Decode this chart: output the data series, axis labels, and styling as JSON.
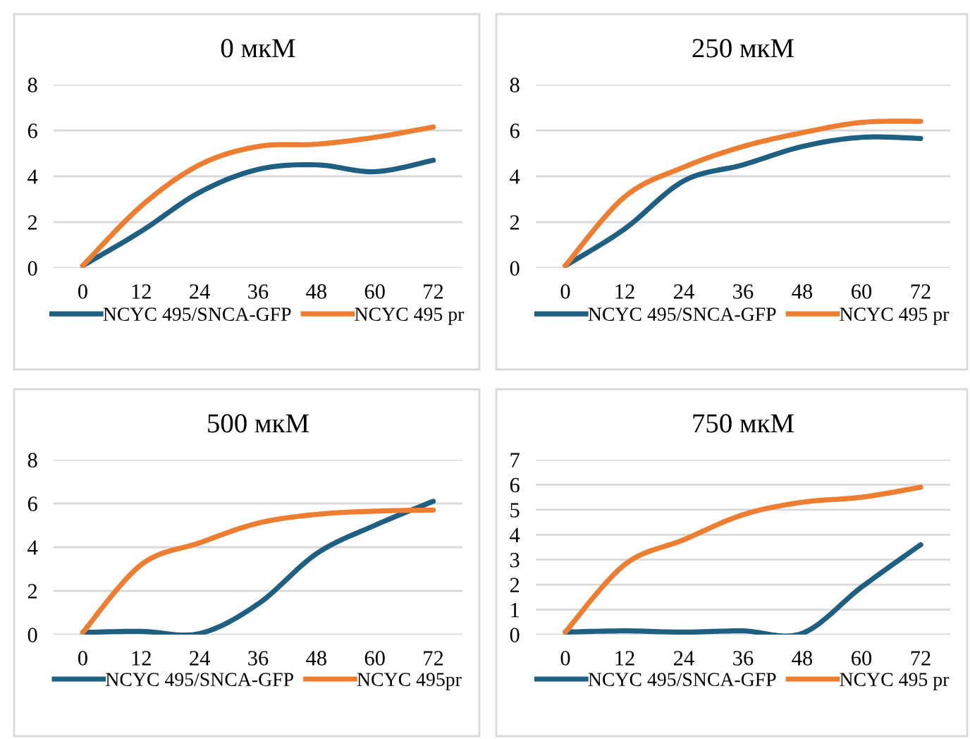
{
  "chart_data": [
    {
      "type": "line",
      "title": "0 мкМ",
      "categories": [
        "0",
        "12",
        "24",
        "36",
        "48",
        "60",
        "72"
      ],
      "ylim": [
        0,
        8
      ],
      "yticks": [
        0,
        2,
        4,
        6,
        8
      ],
      "grid": "y",
      "legend": "bottom",
      "marker": "none",
      "line_style": "solid",
      "series": [
        {
          "name": "NCYC 495/SNCA-GFP",
          "color": "#1f5f82",
          "values": [
            0.1,
            1.6,
            3.3,
            4.3,
            4.5,
            4.2,
            4.7
          ]
        },
        {
          "name": "NCYC 495 pr",
          "color": "#ed7d31",
          "values": [
            0.1,
            2.7,
            4.5,
            5.3,
            5.4,
            5.7,
            6.15
          ]
        }
      ]
    },
    {
      "type": "line",
      "title": "250 мкМ",
      "categories": [
        "0",
        "12",
        "24",
        "36",
        "48",
        "60",
        "72"
      ],
      "ylim": [
        0,
        8
      ],
      "yticks": [
        0,
        2,
        4,
        6,
        8
      ],
      "grid": "y",
      "legend": "bottom",
      "marker": "none",
      "line_style": "solid",
      "series": [
        {
          "name": "NCYC 495/SNCA-GFP",
          "color": "#1f5f82",
          "values": [
            0.1,
            1.7,
            3.8,
            4.5,
            5.3,
            5.7,
            5.65
          ]
        },
        {
          "name": "NCYC 495 pr",
          "color": "#ed7d31",
          "values": [
            0.1,
            3.1,
            4.4,
            5.3,
            5.9,
            6.35,
            6.4
          ]
        }
      ]
    },
    {
      "type": "line",
      "title": "500 мкМ",
      "categories": [
        "0",
        "12",
        "24",
        "36",
        "48",
        "60",
        "72"
      ],
      "ylim": [
        0,
        8
      ],
      "yticks": [
        0,
        2,
        4,
        6,
        8
      ],
      "grid": "y",
      "legend": "bottom",
      "marker": "none",
      "line_style": "solid",
      "series": [
        {
          "name": "NCYC 495/SNCA-GFP",
          "color": "#1f5f82",
          "values": [
            0.1,
            0.15,
            0.05,
            1.4,
            3.7,
            5.0,
            6.1
          ]
        },
        {
          "name": "NCYC 495pr",
          "color": "#ed7d31",
          "values": [
            0.1,
            3.2,
            4.2,
            5.1,
            5.5,
            5.65,
            5.7
          ]
        }
      ]
    },
    {
      "type": "line",
      "title": "750 мкМ",
      "categories": [
        "0",
        "12",
        "24",
        "36",
        "48",
        "60",
        "72"
      ],
      "ylim": [
        0,
        7
      ],
      "yticks": [
        0,
        1,
        2,
        3,
        4,
        5,
        6,
        7
      ],
      "grid": "y",
      "legend": "bottom",
      "marker": "none",
      "line_style": "solid",
      "series": [
        {
          "name": "NCYC 495/SNCA-GFP",
          "color": "#1f5f82",
          "values": [
            0.1,
            0.15,
            0.1,
            0.15,
            0.05,
            1.9,
            3.6
          ]
        },
        {
          "name": "NCYC 495 pr",
          "color": "#ed7d31",
          "values": [
            0.1,
            2.8,
            3.8,
            4.8,
            5.3,
            5.5,
            5.9
          ]
        }
      ]
    }
  ]
}
